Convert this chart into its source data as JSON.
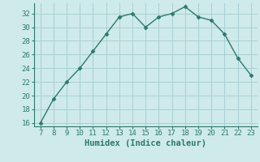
{
  "x": [
    7,
    8,
    9,
    10,
    11,
    12,
    13,
    14,
    15,
    16,
    17,
    18,
    19,
    20,
    21,
    22,
    23
  ],
  "y": [
    16,
    19.5,
    22,
    24,
    26.5,
    29,
    31.5,
    32,
    30,
    31.5,
    32,
    33,
    31.5,
    31,
    29,
    25.5,
    23
  ],
  "line_color": "#2d7a6a",
  "marker": "D",
  "marker_size": 2.5,
  "bg_color": "#ceeaeb",
  "grid_color": "#a8d0d2",
  "xlabel": "Humidex (Indice chaleur)",
  "xlim": [
    6.5,
    23.5
  ],
  "ylim": [
    15.5,
    33.5
  ],
  "xticks": [
    7,
    8,
    9,
    10,
    11,
    12,
    13,
    14,
    15,
    16,
    17,
    18,
    19,
    20,
    21,
    22,
    23
  ],
  "yticks": [
    16,
    18,
    20,
    22,
    24,
    26,
    28,
    30,
    32
  ],
  "tick_color": "#2d7a6a",
  "xlabel_fontsize": 7.5,
  "tick_fontsize": 6.5,
  "line_width": 1.0
}
